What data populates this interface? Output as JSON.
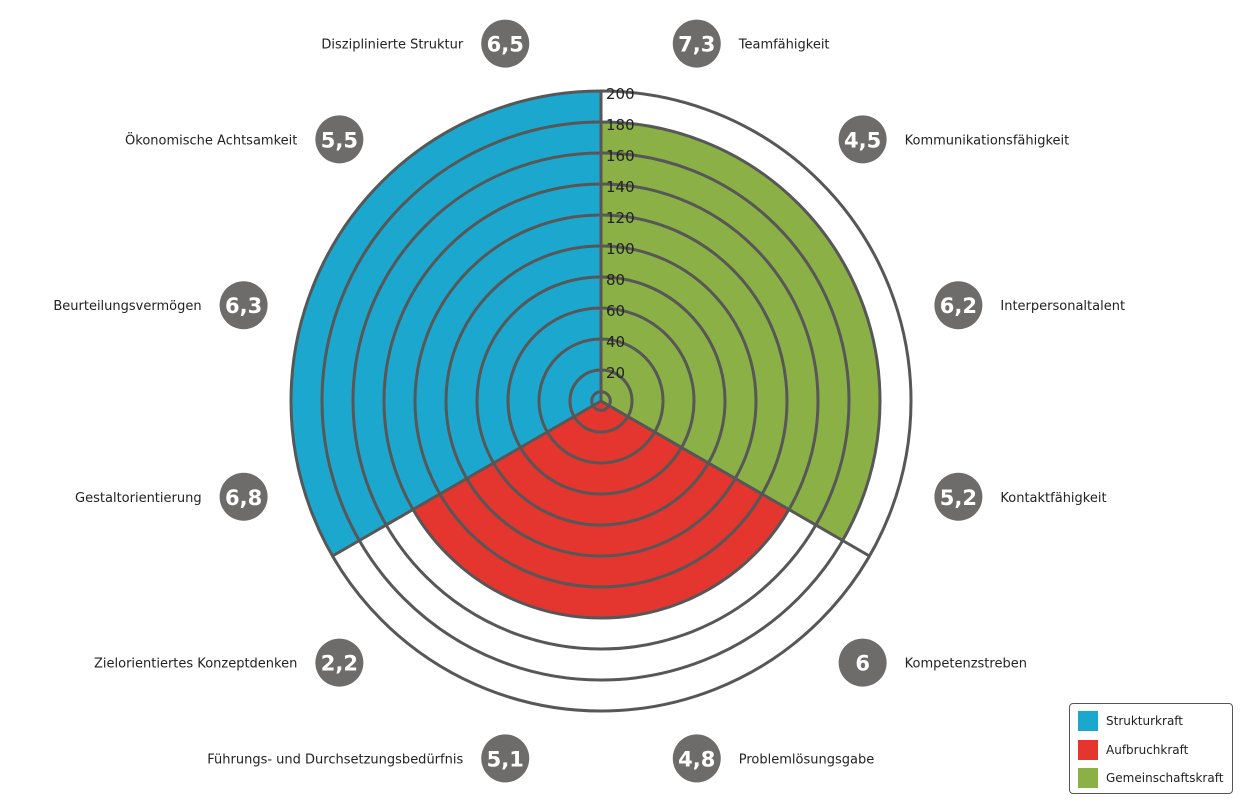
{
  "chart_data": {
    "type": "polar-area",
    "r_ticks": [
      "20",
      "40",
      "60",
      "80",
      "100",
      "120",
      "140",
      "160",
      "180",
      "200"
    ],
    "r_range": [
      0,
      200
    ],
    "sectors": [
      {
        "name": "Strukturkraft",
        "color": "#1CA8CE",
        "value": 200,
        "angle_range_deg": [
          240,
          360
        ]
      },
      {
        "name": "Gemeinschaftskraft",
        "color": "#8BB045",
        "value": 180,
        "angle_range_deg": [
          0,
          120
        ]
      },
      {
        "name": "Aufbruchkraft",
        "color": "#E4352F",
        "value": 140,
        "angle_range_deg": [
          120,
          240
        ]
      }
    ],
    "categories": [
      {
        "label": "Teamfähigkeit",
        "score": "7,3"
      },
      {
        "label": "Kommunikationsfähigkeit",
        "score": "4,5"
      },
      {
        "label": "Interpersonaltalent",
        "score": "6,2"
      },
      {
        "label": "Kontaktfähigkeit",
        "score": "5,2"
      },
      {
        "label": "Kompetenzstreben",
        "score": "6"
      },
      {
        "label": "Problemlösungsgabe",
        "score": "4,8"
      },
      {
        "label": "Führungs- und Durchsetzungsbedürfnis",
        "score": "5,1"
      },
      {
        "label": "Zielorientiertes Konzeptdenken",
        "score": "2,2"
      },
      {
        "label": "Gestaltorientierung",
        "score": "6,8"
      },
      {
        "label": "Beurteilungsvermögen",
        "score": "6,3"
      },
      {
        "label": "Ökonomische Achtsamkeit",
        "score": "5,5"
      },
      {
        "label": "Disziplinierte Struktur",
        "score": "6,5"
      }
    ],
    "legend": {
      "position": "bottom-right",
      "items": [
        {
          "label": "Strukturkraft",
          "color": "#1CA8CE"
        },
        {
          "label": "Aufbruchkraft",
          "color": "#E4352F"
        },
        {
          "label": "Gemeinschaftskraft",
          "color": "#8BB045"
        }
      ]
    },
    "grid": true
  }
}
